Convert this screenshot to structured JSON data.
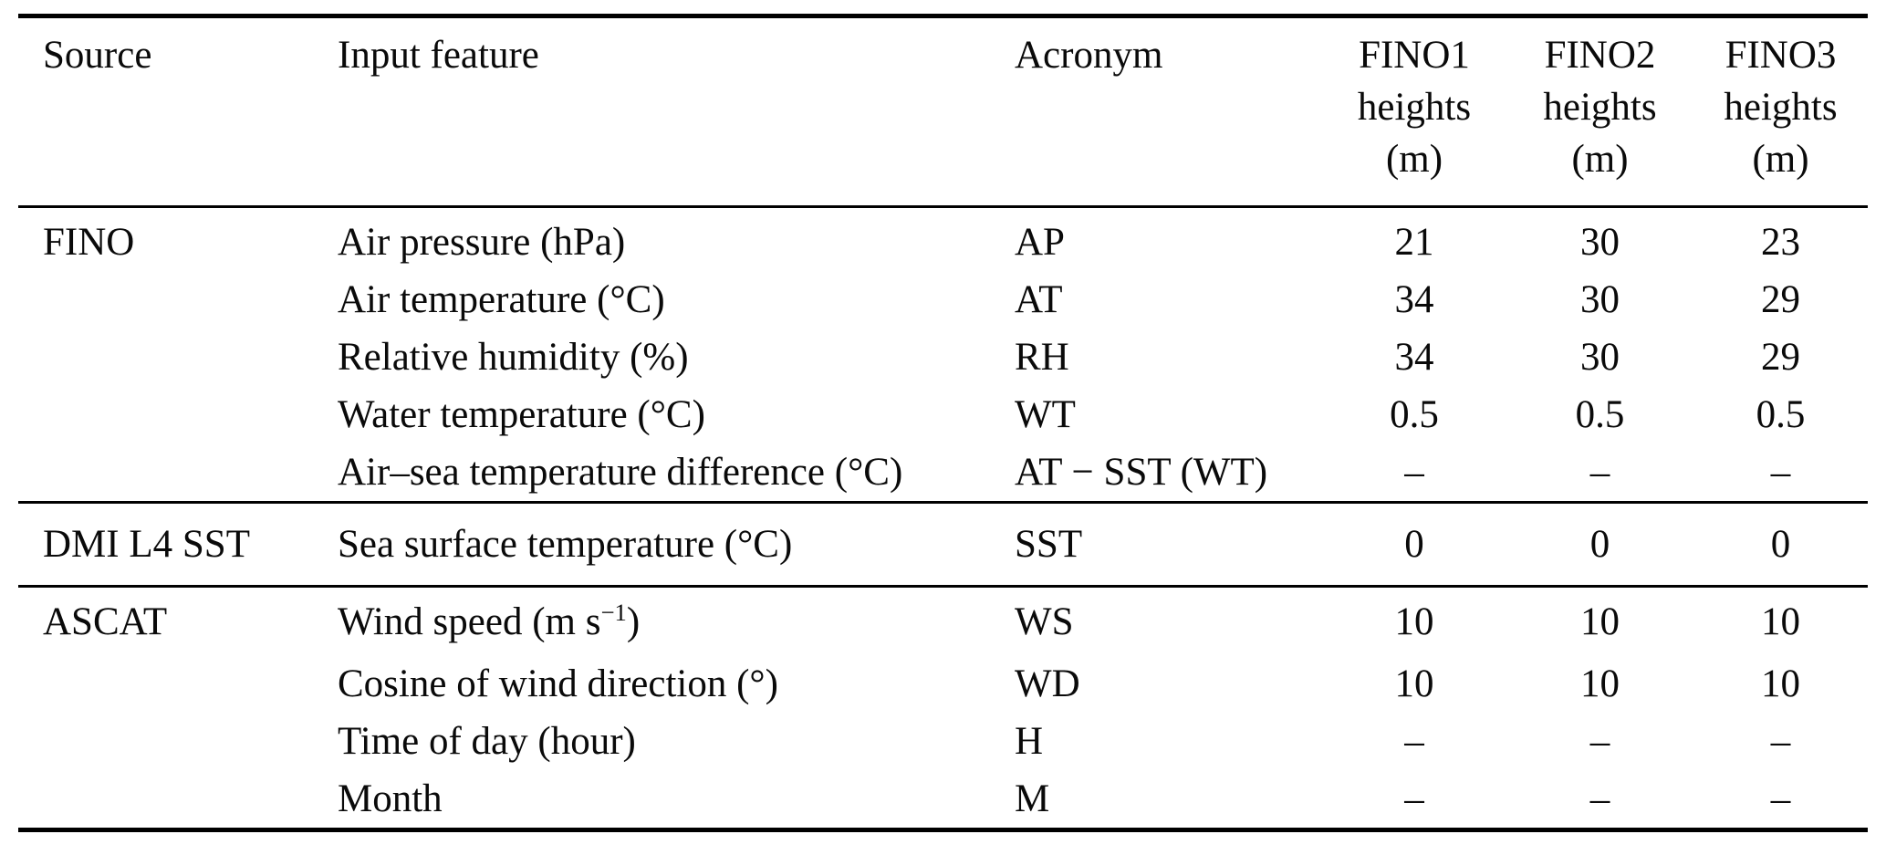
{
  "page": {
    "background": "#ffffff",
    "text_color": "#0a0a0a",
    "rule_color": "#000000"
  },
  "table": {
    "columns": [
      {
        "label": "Source"
      },
      {
        "label": "Input feature"
      },
      {
        "label": "Acronym"
      },
      {
        "lines": [
          "FINO1",
          "heights",
          "(m)"
        ]
      },
      {
        "lines": [
          "FINO2",
          "heights",
          "(m)"
        ]
      },
      {
        "lines": [
          "FINO3",
          "heights",
          "(m)"
        ]
      }
    ],
    "sections": [
      {
        "source": "FINO",
        "rows": [
          {
            "feature": "Air pressure (hPa)",
            "acronym": "AP",
            "values": [
              "21",
              "30",
              "23"
            ]
          },
          {
            "feature": "Air temperature (°C)",
            "acronym": "AT",
            "values": [
              "34",
              "30",
              "29"
            ]
          },
          {
            "feature": "Relative humidity (%)",
            "acronym": "RH",
            "values": [
              "34",
              "30",
              "29"
            ]
          },
          {
            "feature": "Water temperature (°C)",
            "acronym": "WT",
            "values": [
              "0.5",
              "0.5",
              "0.5"
            ]
          },
          {
            "feature": "Air–sea temperature difference (°C)",
            "acronym": "AT − SST (WT)",
            "values": [
              "–",
              "–",
              "–"
            ]
          }
        ]
      },
      {
        "source": "DMI L4 SST",
        "rows": [
          {
            "feature": "Sea surface temperature (°C)",
            "acronym": "SST",
            "values": [
              "0",
              "0",
              "0"
            ]
          }
        ]
      },
      {
        "source": "ASCAT",
        "rows": [
          {
            "feature_parts": [
              "Wind speed (m s",
              "−1",
              ")"
            ],
            "acronym": "WS",
            "values": [
              "10",
              "10",
              "10"
            ]
          },
          {
            "feature": "Cosine of wind direction (°)",
            "acronym": "WD",
            "values": [
              "10",
              "10",
              "10"
            ]
          },
          {
            "feature": "Time of day (hour)",
            "acronym": "H",
            "values": [
              "–",
              "–",
              "–"
            ]
          },
          {
            "feature": "Month",
            "acronym": "M",
            "values": [
              "–",
              "–",
              "–"
            ]
          }
        ]
      }
    ]
  }
}
